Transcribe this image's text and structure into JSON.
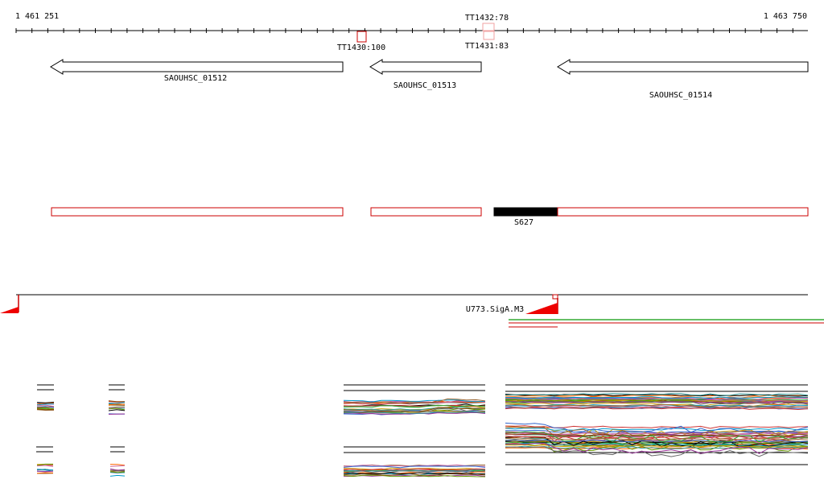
{
  "ruler": {
    "start_label": "1 461 251",
    "end_label": "1 463 750"
  },
  "terminators": [
    {
      "label": "TT1430:100"
    },
    {
      "label": "TT1431:83"
    },
    {
      "label": "TT1432:78"
    }
  ],
  "genes": [
    {
      "label": "SAOUHSC_01512",
      "strand": "minus"
    },
    {
      "label": "SAOUHSC_01513",
      "strand": "minus"
    },
    {
      "label": "SAOUHSC_01514",
      "strand": "minus"
    }
  ],
  "segments": [
    {
      "label": "S627"
    }
  ],
  "upshift": {
    "label": "U773.SigA.M3"
  },
  "colors": {
    "gene_outline": "#000000",
    "segment_outline": "#cc0000",
    "segment_fill_highlight": "#000000",
    "terminator_outline": "#cc0000",
    "signal_red": "#ee0000",
    "signal_green": "#33aa33"
  }
}
